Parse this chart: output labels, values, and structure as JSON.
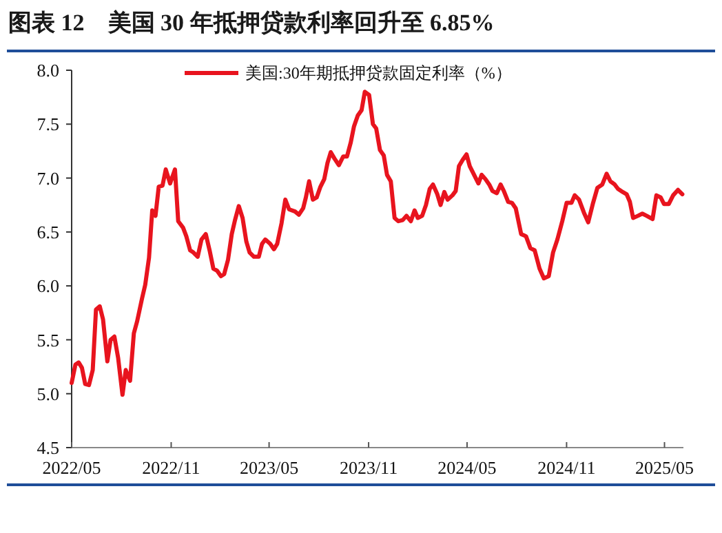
{
  "chart_data": {
    "type": "line",
    "title": "图表 12　美国 30 年抵押贷款利率回升至 6.85%",
    "legend": "top",
    "grid": false,
    "marker": "none",
    "line_style": "solid",
    "xlim": [
      "2022-05-01",
      "2025-06-05"
    ],
    "xticks": [
      {
        "value": "2022-05-01",
        "label": "2022/05"
      },
      {
        "value": "2022-11-01",
        "label": "2022/11"
      },
      {
        "value": "2023-05-01",
        "label": "2023/05"
      },
      {
        "value": "2023-11-01",
        "label": "2023/11"
      },
      {
        "value": "2024-05-01",
        "label": "2024/05"
      },
      {
        "value": "2024-11-01",
        "label": "2024/11"
      },
      {
        "value": "2025-05-01",
        "label": "2025/05"
      }
    ],
    "ylim": [
      4.5,
      8.0
    ],
    "yticks": [
      {
        "value": 4.5,
        "label": "4.5"
      },
      {
        "value": 5,
        "label": "5.0"
      },
      {
        "value": 5.5,
        "label": "5.5"
      },
      {
        "value": 6,
        "label": "6.0"
      },
      {
        "value": 6.5,
        "label": "6.5"
      },
      {
        "value": 7,
        "label": "7.0"
      },
      {
        "value": 7.5,
        "label": "7.5"
      },
      {
        "value": 8,
        "label": "8.0"
      }
    ],
    "x": [
      "2022-05-01",
      "2022-05-08",
      "2022-05-14",
      "2022-05-20",
      "2022-05-26",
      "2022-06-02",
      "2022-06-09",
      "2022-06-15",
      "2022-06-22",
      "2022-06-28",
      "2022-07-06",
      "2022-07-12",
      "2022-07-19",
      "2022-07-26",
      "2022-08-03",
      "2022-08-09",
      "2022-08-17",
      "2022-08-24",
      "2022-08-30",
      "2022-09-08",
      "2022-09-14",
      "2022-09-21",
      "2022-09-27",
      "2022-10-03",
      "2022-10-09",
      "2022-10-16",
      "2022-10-22",
      "2022-10-30",
      "2022-11-08",
      "2022-11-14",
      "2022-11-23",
      "2022-11-29",
      "2022-12-06",
      "2022-12-12",
      "2022-12-20",
      "2022-12-27",
      "2023-01-04",
      "2023-01-11",
      "2023-01-18",
      "2023-01-25",
      "2023-02-01",
      "2023-02-07",
      "2023-02-14",
      "2023-02-21",
      "2023-02-27",
      "2023-03-06",
      "2023-03-13",
      "2023-03-20",
      "2023-03-26",
      "2023-04-03",
      "2023-04-12",
      "2023-04-18",
      "2023-04-24",
      "2023-05-03",
      "2023-05-10",
      "2023-05-16",
      "2023-05-24",
      "2023-05-31",
      "2023-06-07",
      "2023-06-18",
      "2023-06-25",
      "2023-07-03",
      "2023-07-08",
      "2023-07-14",
      "2023-07-21",
      "2023-07-28",
      "2023-08-04",
      "2023-08-11",
      "2023-08-17",
      "2023-08-23",
      "2023-08-30",
      "2023-09-07",
      "2023-09-15",
      "2023-09-22",
      "2023-09-29",
      "2023-10-05",
      "2023-10-12",
      "2023-10-19",
      "2023-10-25",
      "2023-11-02",
      "2023-11-09",
      "2023-11-15",
      "2023-11-22",
      "2023-11-29",
      "2023-12-05",
      "2023-12-12",
      "2023-12-19",
      "2023-12-26",
      "2024-01-03",
      "2024-01-10",
      "2024-01-18",
      "2024-01-25",
      "2024-01-31",
      "2024-02-08",
      "2024-02-15",
      "2024-02-22",
      "2024-02-28",
      "2024-03-07",
      "2024-03-13",
      "2024-03-20",
      "2024-03-26",
      "2024-04-04",
      "2024-04-10",
      "2024-04-16",
      "2024-04-23",
      "2024-04-30",
      "2024-05-06",
      "2024-05-14",
      "2024-05-22",
      "2024-05-28",
      "2024-06-04",
      "2024-06-11",
      "2024-06-17",
      "2024-06-25",
      "2024-07-02",
      "2024-07-08",
      "2024-07-16",
      "2024-07-23",
      "2024-07-30",
      "2024-08-09",
      "2024-08-18",
      "2024-08-26",
      "2024-09-03",
      "2024-09-12",
      "2024-09-20",
      "2024-09-29",
      "2024-10-07",
      "2024-10-15",
      "2024-10-24",
      "2024-11-01",
      "2024-11-10",
      "2024-11-16",
      "2024-11-24",
      "2024-12-03",
      "2024-12-11",
      "2024-12-20",
      "2024-12-28",
      "2025-01-06",
      "2025-01-14",
      "2025-01-21",
      "2025-01-29",
      "2025-02-04",
      "2025-02-13",
      "2025-02-20",
      "2025-02-26",
      "2025-03-04",
      "2025-03-13",
      "2025-03-21",
      "2025-03-29",
      "2025-04-09",
      "2025-04-16",
      "2025-04-24",
      "2025-04-30",
      "2025-05-09",
      "2025-05-17",
      "2025-05-26",
      "2025-06-03"
    ],
    "series": [
      {
        "name": "美国:30年期抵押贷款固定利率（%）",
        "color": "#e8141e",
        "values": [
          5.1,
          5.27,
          5.29,
          5.24,
          5.09,
          5.08,
          5.22,
          5.78,
          5.81,
          5.69,
          5.3,
          5.5,
          5.53,
          5.33,
          4.99,
          5.22,
          5.12,
          5.56,
          5.67,
          5.88,
          6.01,
          6.26,
          6.7,
          6.65,
          6.92,
          6.93,
          7.08,
          6.95,
          7.08,
          6.6,
          6.54,
          6.46,
          6.33,
          6.31,
          6.27,
          6.43,
          6.48,
          6.33,
          6.16,
          6.14,
          6.09,
          6.11,
          6.24,
          6.48,
          6.61,
          6.74,
          6.63,
          6.41,
          6.31,
          6.27,
          6.27,
          6.39,
          6.43,
          6.39,
          6.34,
          6.39,
          6.58,
          6.8,
          6.71,
          6.69,
          6.66,
          6.72,
          6.82,
          6.97,
          6.8,
          6.82,
          6.92,
          6.99,
          7.14,
          7.24,
          7.18,
          7.12,
          7.2,
          7.2,
          7.33,
          7.48,
          7.58,
          7.63,
          7.8,
          7.77,
          7.5,
          7.46,
          7.26,
          7.21,
          7.03,
          6.97,
          6.63,
          6.6,
          6.61,
          6.65,
          6.6,
          6.7,
          6.63,
          6.65,
          6.75,
          6.9,
          6.94,
          6.85,
          6.75,
          6.87,
          6.8,
          6.84,
          6.88,
          7.11,
          7.17,
          7.22,
          7.11,
          7.03,
          6.95,
          7.03,
          6.99,
          6.94,
          6.88,
          6.86,
          6.94,
          6.88,
          6.78,
          6.77,
          6.72,
          6.48,
          6.46,
          6.35,
          6.33,
          6.16,
          6.07,
          6.09,
          6.31,
          6.43,
          6.6,
          6.77,
          6.77,
          6.84,
          6.8,
          6.68,
          6.59,
          6.77,
          6.91,
          6.94,
          7.04,
          6.97,
          6.94,
          6.9,
          6.87,
          6.85,
          6.78,
          6.63,
          6.65,
          6.67,
          6.65,
          6.62,
          6.84,
          6.82,
          6.76,
          6.76,
          6.84,
          6.89,
          6.85
        ]
      }
    ]
  }
}
